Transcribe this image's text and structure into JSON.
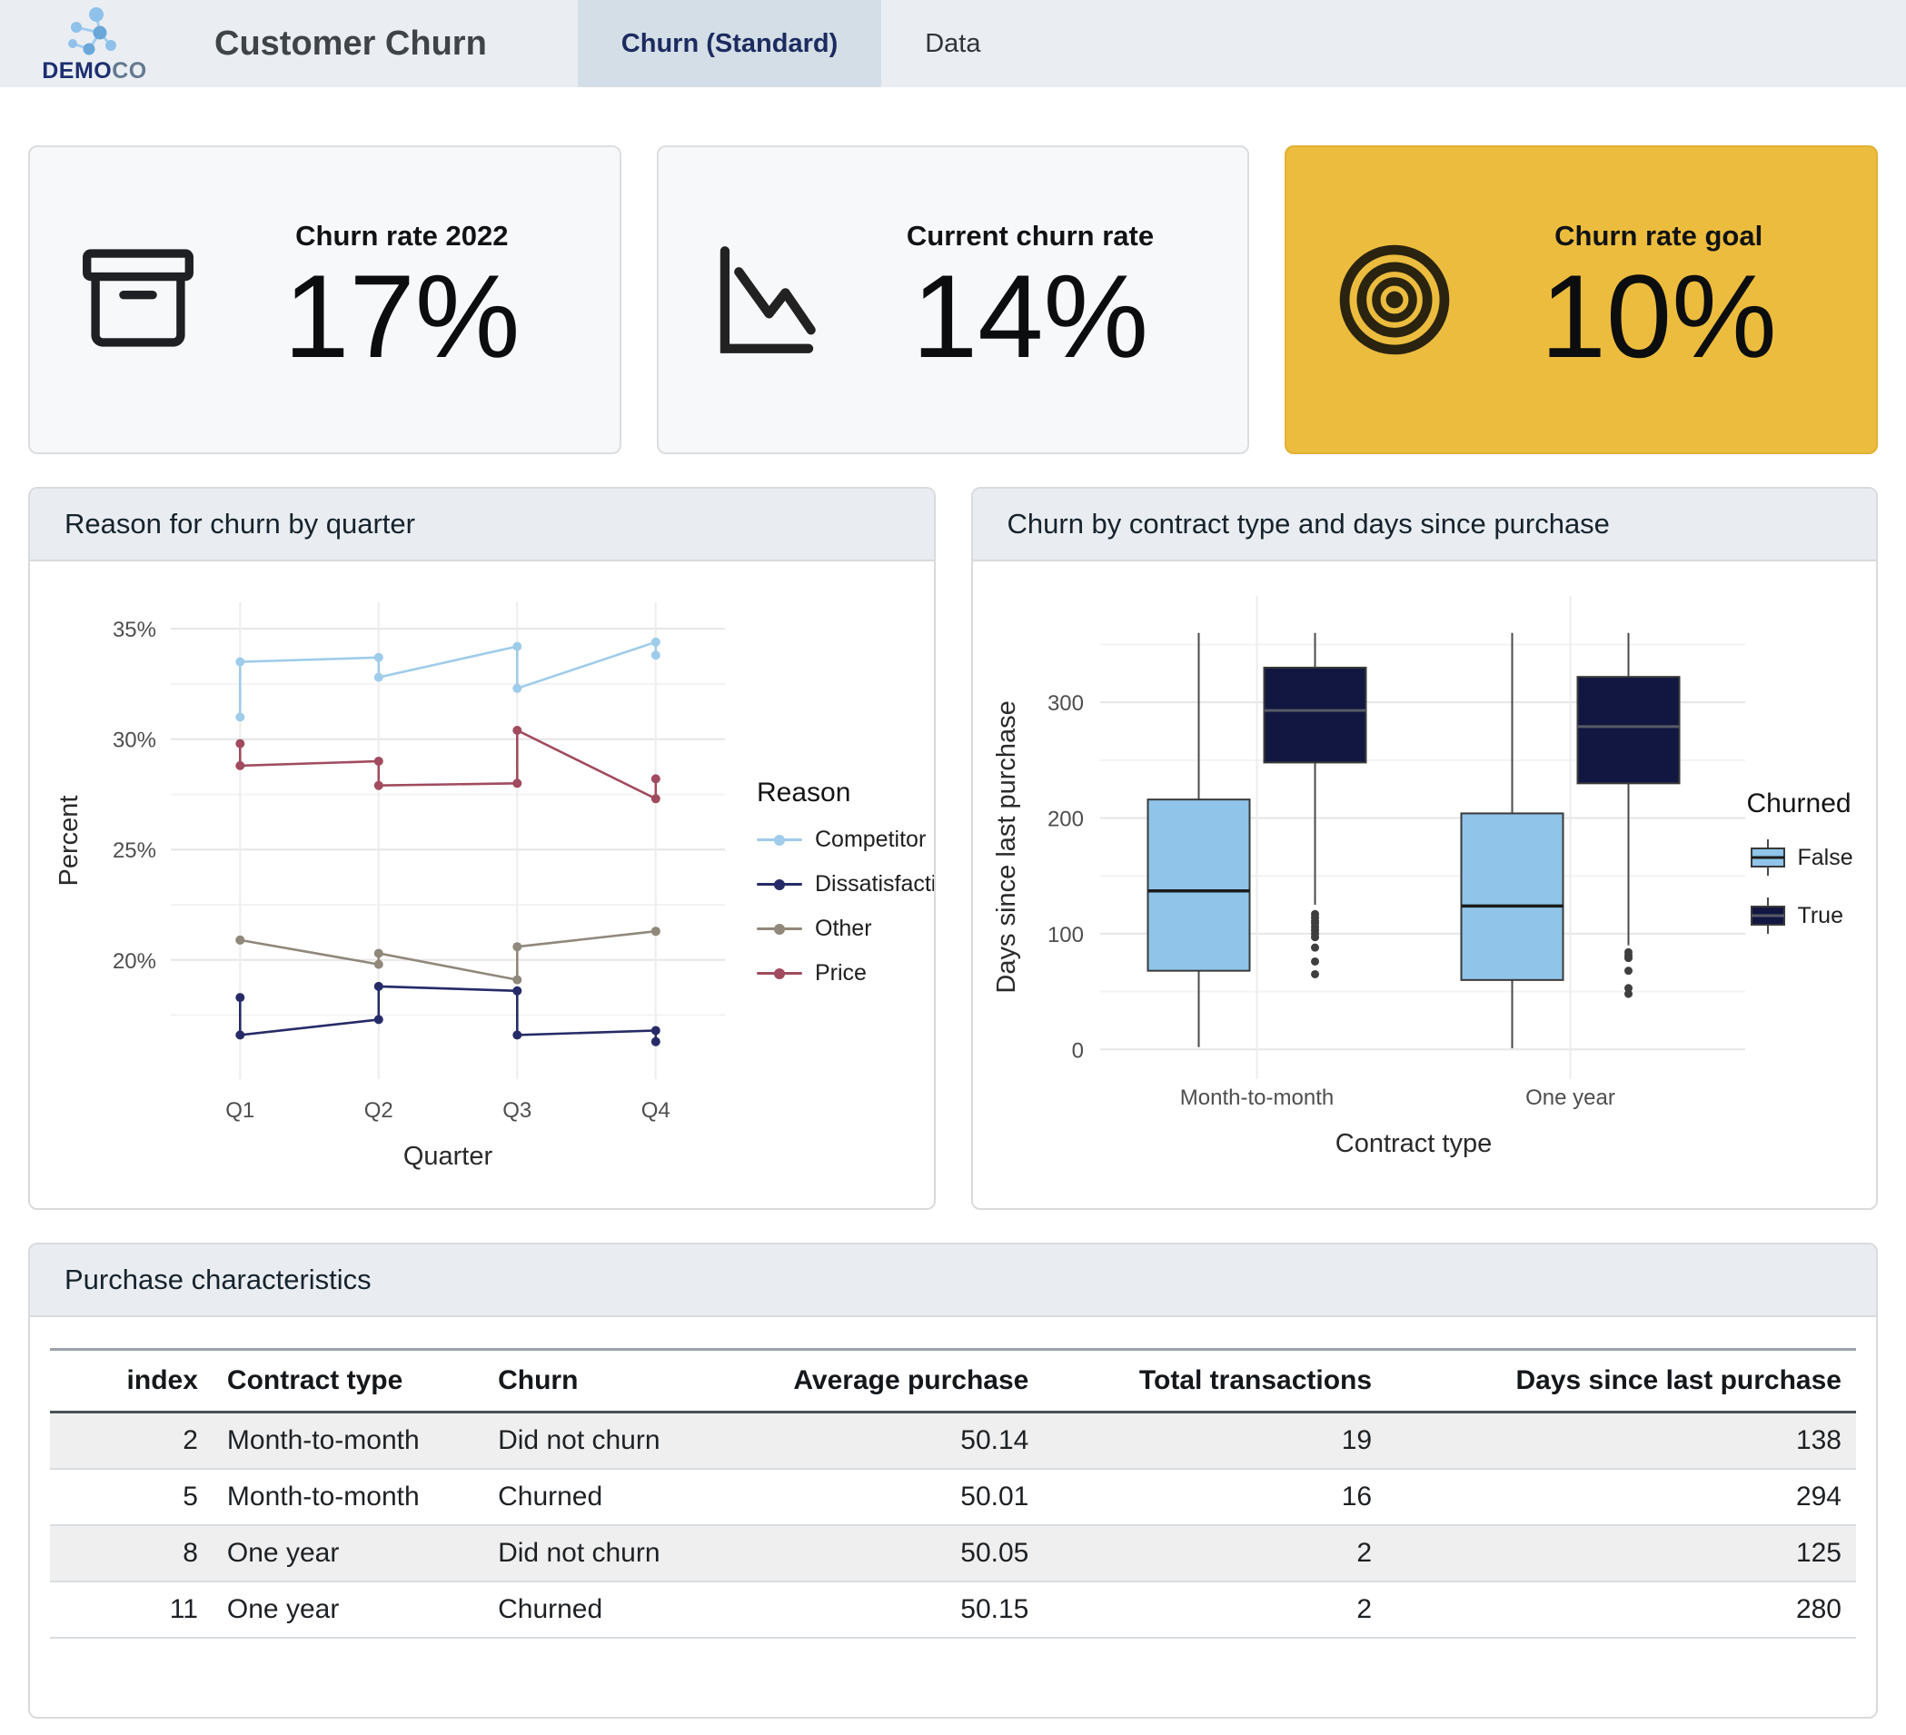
{
  "header": {
    "logo_text_primary": "DEMO",
    "logo_text_secondary": "CO",
    "title": "Customer Churn",
    "tabs": [
      {
        "label": "Churn (Standard)",
        "active": true
      },
      {
        "label": "Data",
        "active": false
      }
    ]
  },
  "kpis": [
    {
      "title": "Churn rate 2022",
      "value": "17%",
      "icon": "archive-box-icon",
      "background": "#f7f8f9"
    },
    {
      "title": "Current churn rate",
      "value": "14%",
      "icon": "trend-down-icon",
      "background": "#f7f8f9"
    },
    {
      "title": "Churn rate goal",
      "value": "10%",
      "icon": "target-icon",
      "background": "#ecbc3e"
    }
  ],
  "chart_data": [
    {
      "type": "line",
      "title": "Reason for churn by quarter",
      "xlabel": "Quarter",
      "ylabel": "Percent",
      "categories": [
        "Q1",
        "Q2",
        "Q3",
        "Q4"
      ],
      "y_ticks": [
        20,
        25,
        30,
        35
      ],
      "y_minor": [
        17.5,
        22.5,
        27.5,
        32.5
      ],
      "ylim": [
        14.6,
        36.2
      ],
      "grid": true,
      "legend_position": "right",
      "legend_title": "Reason",
      "series": [
        {
          "name": "Competitor",
          "color": "#9fccea",
          "values": [
            [
              31.0,
              33.5
            ],
            [
              33.7,
              32.8
            ],
            [
              34.2,
              32.3
            ],
            [
              34.4,
              33.8
            ]
          ]
        },
        {
          "name": "Dissatisfaction",
          "color": "#262b68",
          "values": [
            [
              18.3,
              16.6
            ],
            [
              17.3,
              18.8
            ],
            [
              18.6,
              16.6
            ],
            [
              16.8,
              16.3
            ]
          ]
        },
        {
          "name": "Other",
          "color": "#90887a",
          "values": [
            [
              20.9,
              20.9
            ],
            [
              19.8,
              20.3
            ],
            [
              19.1,
              20.6
            ],
            [
              21.3,
              21.3
            ]
          ]
        },
        {
          "name": "Price",
          "color": "#a14b5e",
          "values": [
            [
              29.8,
              28.8
            ],
            [
              29.0,
              27.9
            ],
            [
              28.0,
              30.4
            ],
            [
              27.3,
              28.2
            ]
          ]
        }
      ]
    },
    {
      "type": "boxplot",
      "title": "Churn by contract type and days since purchase",
      "xlabel": "Contract type",
      "ylabel": "Days since last purchase",
      "categories": [
        "Month-to-month",
        "One year"
      ],
      "y_ticks": [
        0,
        100,
        200,
        300
      ],
      "y_minor": [
        50,
        150,
        250,
        350
      ],
      "ylim": [
        -10,
        392
      ],
      "grid": true,
      "legend_position": "right",
      "legend_title": "Churned",
      "series": [
        {
          "name": "False",
          "color": "#90c4e9",
          "median_color": "#1c1c1c",
          "boxes": [
            {
              "category": "Month-to-month",
              "low": 2,
              "q1": 68,
              "median": 137,
              "q3": 216,
              "high": 360,
              "outliers": []
            },
            {
              "category": "One year",
              "low": 1,
              "q1": 60,
              "median": 124,
              "q3": 204,
              "high": 360,
              "outliers": []
            }
          ]
        },
        {
          "name": "True",
          "color": "#111741",
          "median_color": "#565a67",
          "boxes": [
            {
              "category": "Month-to-month",
              "low": 125,
              "q1": 248,
              "median": 293,
              "q3": 330,
              "high": 360,
              "outliers": [
                117,
                114,
                111,
                109,
                106,
                103,
                100,
                97,
                88,
                76,
                65
              ]
            },
            {
              "category": "One year",
              "low": 90,
              "q1": 230,
              "median": 279,
              "q3": 322,
              "high": 360,
              "outliers": [
                84,
                81,
                79,
                68,
                53,
                48
              ]
            }
          ]
        }
      ]
    }
  ],
  "table": {
    "title": "Purchase characteristics",
    "columns": [
      "index",
      "Contract type",
      "Churn",
      "Average purchase",
      "Total transactions",
      "Days since last purchase"
    ],
    "align": [
      "right",
      "left",
      "left",
      "right",
      "right",
      "right"
    ],
    "widths": [
      "9%",
      "15%",
      "16%",
      "15%",
      "19%",
      "26%"
    ],
    "rows": [
      [
        "2",
        "Month-to-month",
        "Did not churn",
        "50.14",
        "19",
        "138"
      ],
      [
        "5",
        "Month-to-month",
        "Churned",
        "50.01",
        "16",
        "294"
      ],
      [
        "8",
        "One year",
        "Did not churn",
        "50.05",
        "2",
        "125"
      ],
      [
        "11",
        "One year",
        "Churned",
        "50.15",
        "2",
        "280"
      ]
    ]
  },
  "colors": {
    "header_bg": "#eaeef3",
    "active_tab_bg": "#d4dee7",
    "panel_header_bg": "#e9edf1",
    "goal_card_bg": "#ecbc3e",
    "row_stripe": "#efefef",
    "logo_blue": "#8fc1ea"
  }
}
